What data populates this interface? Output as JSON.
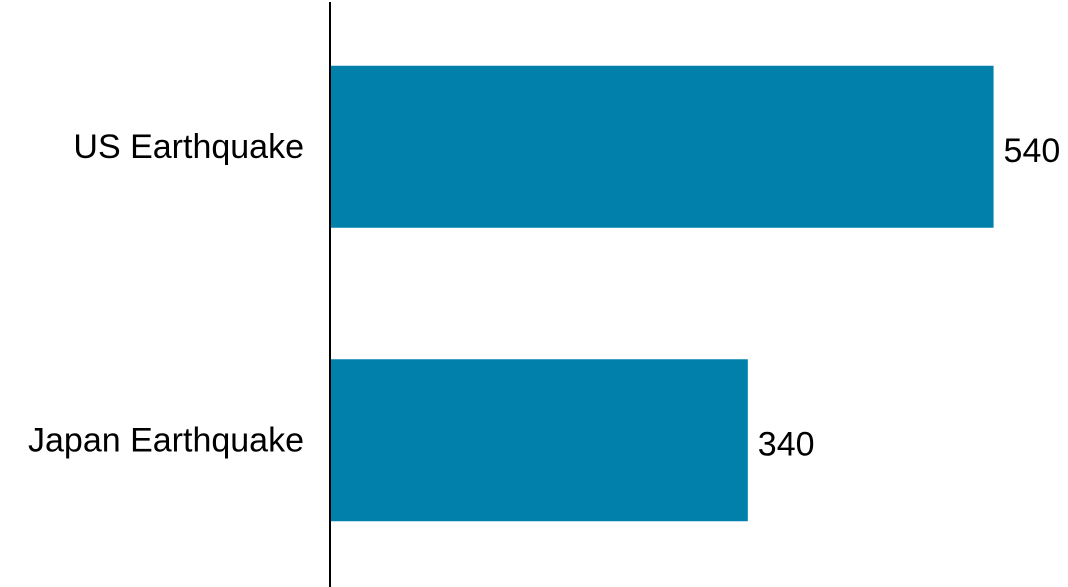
{
  "chart_data": {
    "type": "bar",
    "orientation": "horizontal",
    "categories": [
      "US Earthquake",
      "Japan Earthquake"
    ],
    "values": [
      540,
      340
    ],
    "data_labels": [
      "540",
      "340"
    ],
    "xlim": [
      0,
      590
    ],
    "grid": false,
    "legend": "none",
    "bar_color": "#0080AA",
    "axis_color": "#000000"
  }
}
